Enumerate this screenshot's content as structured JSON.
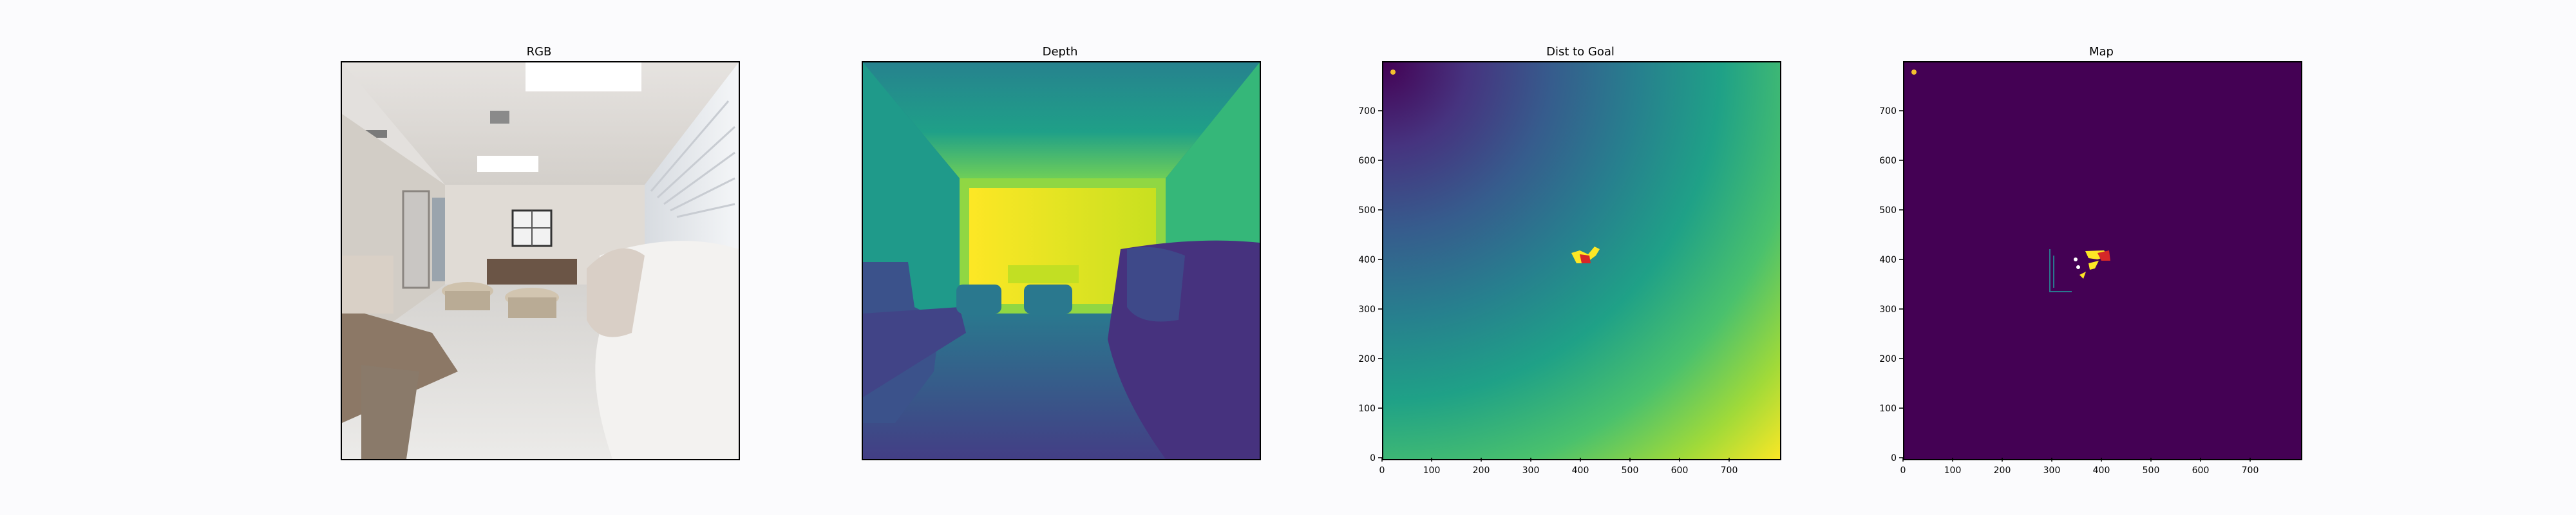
{
  "figure": {
    "background": "#fbfbfd",
    "panels": [
      {
        "id": "rgb",
        "title": "RGB",
        "kind": "photo",
        "axes": false
      },
      {
        "id": "depth",
        "title": "Depth",
        "kind": "depth-image",
        "axes": false,
        "colormap": "viridis"
      },
      {
        "id": "dist",
        "title": "Dist to Goal",
        "kind": "heatmap",
        "axes": true,
        "colormap": "viridis"
      },
      {
        "id": "map",
        "title": "Map",
        "kind": "occupancy-map",
        "axes": true,
        "colormap": "viridis"
      }
    ]
  },
  "chart_data": [
    {
      "type": "heatmap",
      "title": "Dist to Goal",
      "colormap": "viridis",
      "xlim": [
        0,
        800
      ],
      "ylim": [
        0,
        800
      ],
      "xticks": [
        0,
        100,
        200,
        300,
        400,
        500,
        600,
        700
      ],
      "yticks": [
        0,
        100,
        200,
        300,
        400,
        500,
        600,
        700
      ],
      "description": "Distance field: low (dark purple) near top-left corner, high (yellow) toward bottom-right",
      "markers": [
        {
          "label": "start",
          "x": 20,
          "y": 780,
          "color": "#f2c12e"
        },
        {
          "label": "goal-region",
          "x": 405,
          "y": 410,
          "color": "#fde725"
        },
        {
          "label": "agent",
          "x": 405,
          "y": 400,
          "color": "#d62728"
        }
      ]
    },
    {
      "type": "heatmap",
      "title": "Map",
      "colormap": "viridis",
      "xlim": [
        0,
        800
      ],
      "ylim": [
        0,
        800
      ],
      "xticks": [
        0,
        100,
        200,
        300,
        400,
        500,
        600,
        700
      ],
      "yticks": [
        0,
        100,
        200,
        300,
        400,
        500,
        600,
        700
      ],
      "description": "Mostly empty (dark purple) map with small explored region around x 290-420, y 340-420",
      "markers": [
        {
          "label": "start",
          "x": 20,
          "y": 780,
          "color": "#f2c12e"
        },
        {
          "label": "agent",
          "x": 405,
          "y": 405,
          "color": "#d62728"
        }
      ]
    }
  ]
}
